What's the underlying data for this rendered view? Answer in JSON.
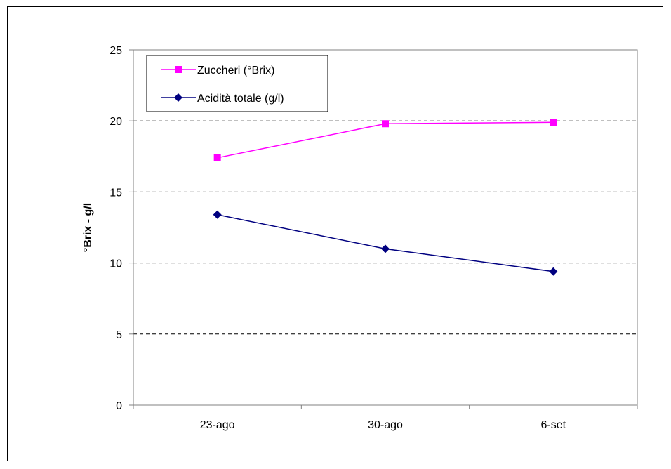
{
  "chart_data": {
    "type": "line",
    "title": "",
    "xlabel": "",
    "ylabel": "°Brix - g/l",
    "categories": [
      "23-ago",
      "30-ago",
      "6-set"
    ],
    "ylim": [
      0,
      25
    ],
    "yticks": [
      0,
      5,
      10,
      15,
      20,
      25
    ],
    "grid": "horizontal dashed",
    "legend_position": "top-left",
    "series": [
      {
        "name": "Zuccheri (°Brix)",
        "values": [
          17.4,
          19.8,
          19.9
        ],
        "color": "#ff00ff",
        "marker": "square"
      },
      {
        "name": "Acidità totale (g/l)",
        "values": [
          13.4,
          11.0,
          9.4
        ],
        "color": "#000080",
        "marker": "diamond"
      }
    ]
  }
}
